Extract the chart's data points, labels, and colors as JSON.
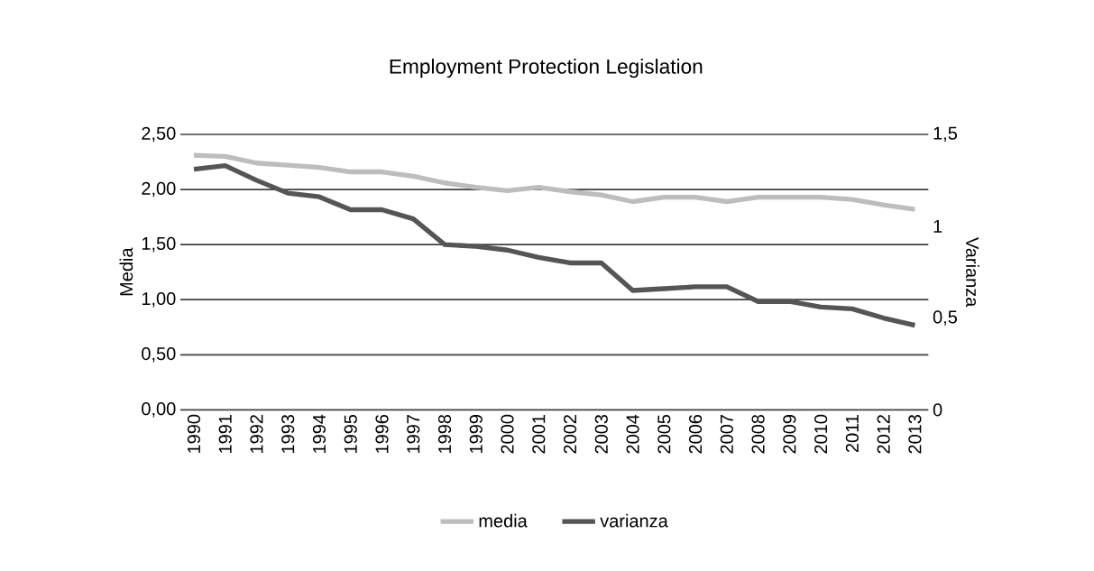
{
  "chart_data": {
    "type": "line",
    "title": "Employment Protection Legislation",
    "ylabel": "Media",
    "y2label": "Varianza",
    "categories": [
      "1990",
      "1991",
      "1992",
      "1993",
      "1994",
      "1995",
      "1996",
      "1997",
      "1998",
      "1999",
      "2000",
      "2001",
      "2002",
      "2003",
      "2004",
      "2005",
      "2006",
      "2007",
      "2008",
      "2009",
      "2010",
      "2011",
      "2012",
      "2013"
    ],
    "series": [
      {
        "name": "media",
        "color": "#bdbdbd",
        "values": [
          2.31,
          2.3,
          2.24,
          2.22,
          2.2,
          2.16,
          2.16,
          2.12,
          2.06,
          2.02,
          1.99,
          2.02,
          1.98,
          1.95,
          1.89,
          1.93,
          1.93,
          1.89,
          1.93,
          1.93,
          1.93,
          1.91,
          1.86,
          1.82
        ]
      },
      {
        "name": "varianza",
        "color": "#555555",
        "axis": "y2",
        "values": [
          1.31,
          1.33,
          1.25,
          1.18,
          1.16,
          1.09,
          1.09,
          1.04,
          0.9,
          0.89,
          0.87,
          0.83,
          0.8,
          0.8,
          0.65,
          0.66,
          0.67,
          0.67,
          0.59,
          0.59,
          0.56,
          0.55,
          0.5,
          0.46
        ]
      }
    ],
    "ylim": [
      0,
      2.5
    ],
    "yticks": [
      {
        "value": 0,
        "label": "0,00"
      },
      {
        "value": 0.5,
        "label": "0,50"
      },
      {
        "value": 1,
        "label": "1,00"
      },
      {
        "value": 1.5,
        "label": "1,50"
      },
      {
        "value": 2,
        "label": "2,00"
      },
      {
        "value": 2.5,
        "label": "2,50"
      }
    ],
    "y2lim": [
      0,
      1.5
    ],
    "y2ticks": [
      0,
      {
        "value": 0.5,
        "label": "0,5"
      },
      1,
      {
        "value": 1.5,
        "label": "1,5"
      }
    ],
    "grid": "y",
    "legend": "bottom",
    "marker": "none",
    "line_style": "solid"
  }
}
